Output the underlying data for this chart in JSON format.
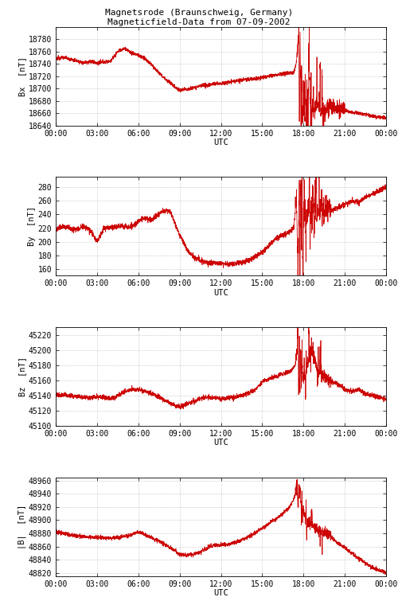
{
  "title_line1": "Magnetsrode (Braunschweig, Germany)",
  "title_line2": "Magneticfield-Data from 07-09-2002",
  "bg_color": "#ffffff",
  "line_color": "#cc0000",
  "grid_color": "#888888",
  "xlabel": "UTC",
  "ylabel_bx": "Bx  [nT]",
  "ylabel_by": "By  [nT]",
  "ylabel_bz": "Bz  [nT]",
  "ylabel_babs": "|B|  [nT]",
  "bx_ylim": [
    18640,
    18800
  ],
  "by_ylim": [
    150,
    295
  ],
  "bz_ylim": [
    45100,
    45230
  ],
  "babs_ylim": [
    48815,
    48965
  ],
  "bx_yticks": [
    18640,
    18660,
    18680,
    18700,
    18720,
    18740,
    18760,
    18780
  ],
  "by_yticks": [
    160,
    180,
    200,
    220,
    240,
    260,
    280
  ],
  "bz_yticks": [
    45100,
    45120,
    45140,
    45160,
    45180,
    45200,
    45220
  ],
  "babs_yticks": [
    48820,
    48840,
    48860,
    48880,
    48900,
    48920,
    48940,
    48960
  ],
  "xticks": [
    0,
    3,
    6,
    9,
    12,
    15,
    18,
    21,
    24
  ],
  "xtick_labels": [
    "00:00",
    "03:00",
    "06:00",
    "09:00",
    "12:00",
    "15:00",
    "18:00",
    "21:00",
    "00:00"
  ],
  "title_fontsize": 8,
  "axis_fontsize": 7.5,
  "tick_fontsize": 7
}
